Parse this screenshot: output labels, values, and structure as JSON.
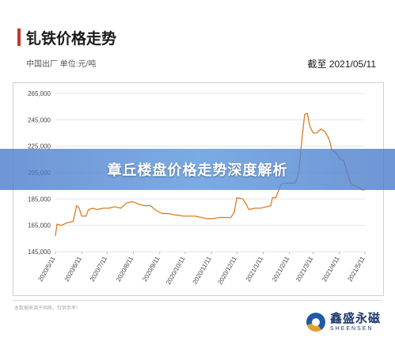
{
  "header": {
    "title": "钆铁价格走势",
    "subtitle": "中国出厂  单位:元/吨",
    "as_of": "截至 2021/05/11"
  },
  "banner": {
    "text": "章丘楼盘价格走势深度解析"
  },
  "footer": {
    "disclaimer": "本数据来源于网络，仅供参考！",
    "logo_cn": "鑫盛永磁",
    "logo_en": "SHEENSEN"
  },
  "colors": {
    "line": "#e07b1f",
    "accent": "#c0392b",
    "banner": "#4a7bc8",
    "logo": "#1e3a6e"
  },
  "chart_data": {
    "type": "line",
    "title": "钆铁价格走势",
    "xlabel": "",
    "ylabel": "",
    "ylim": [
      145000,
      265000
    ],
    "yticks": [
      145000,
      165000,
      185000,
      205000,
      225000,
      245000,
      265000
    ],
    "ytick_labels": [
      "145,000",
      "165,000",
      "185,000",
      "205,000",
      "225,000",
      "245,000",
      "265,000"
    ],
    "xlim": [
      "2020-05-11",
      "2021-05-11"
    ],
    "xticks": [
      "2020-05-11",
      "2020-06-11",
      "2020-07-11",
      "2020-08-11",
      "2020-09-11",
      "2020-10-11",
      "2020-11-11",
      "2020-12-11",
      "2021-01-11",
      "2021-02-11",
      "2021-03-11",
      "2021-04-11",
      "2021-05-11"
    ],
    "xtick_labels": [
      "2020/5/11",
      "2020/6/11",
      "2020/7/11",
      "2020/8/11",
      "2020/9/11",
      "2020/10/11",
      "2020/11/11",
      "2020/12/11",
      "2021/1/11",
      "2021/2/11",
      "2021/3/11",
      "2021/4/11",
      "2021/5/11"
    ],
    "grid": true,
    "series": [
      {
        "x": [
          "2020-05-11",
          "2020-05-13",
          "2020-05-18",
          "2020-05-25",
          "2020-06-01",
          "2020-06-05",
          "2020-06-08",
          "2020-06-11",
          "2020-06-16",
          "2020-06-19",
          "2020-06-24",
          "2020-06-29",
          "2020-07-06",
          "2020-07-13",
          "2020-07-20",
          "2020-07-27",
          "2020-08-03",
          "2020-08-10",
          "2020-08-17",
          "2020-08-24",
          "2020-08-31",
          "2020-09-07",
          "2020-09-14",
          "2020-09-21",
          "2020-09-28",
          "2020-10-09",
          "2020-10-16",
          "2020-10-23",
          "2020-10-30",
          "2020-11-06",
          "2020-11-13",
          "2020-11-20",
          "2020-11-27",
          "2020-12-04",
          "2020-12-08",
          "2020-12-11",
          "2020-12-18",
          "2020-12-22",
          "2020-12-25",
          "2021-01-01",
          "2021-01-08",
          "2021-01-15",
          "2021-01-20",
          "2021-01-22",
          "2021-01-26",
          "2021-02-01",
          "2021-02-05",
          "2021-02-10",
          "2021-02-18",
          "2021-02-22",
          "2021-02-26",
          "2021-03-01",
          "2021-03-04",
          "2021-03-07",
          "2021-03-11",
          "2021-03-15",
          "2021-03-20",
          "2021-03-25",
          "2021-03-30",
          "2021-04-02",
          "2021-04-07",
          "2021-04-12",
          "2021-04-16",
          "2021-04-20",
          "2021-04-24",
          "2021-04-28",
          "2021-05-03",
          "2021-05-07",
          "2021-05-11"
        ],
        "y": [
          157000,
          166000,
          165000,
          167000,
          168000,
          180000,
          178000,
          172000,
          172000,
          177000,
          178000,
          177000,
          178000,
          178000,
          179000,
          178000,
          182000,
          183000,
          181000,
          180000,
          180000,
          176000,
          174000,
          174000,
          173000,
          172000,
          172000,
          172000,
          171000,
          170000,
          170000,
          171000,
          171000,
          171000,
          175000,
          186000,
          185000,
          181000,
          177000,
          178000,
          178000,
          179000,
          180000,
          186000,
          186000,
          196000,
          197000,
          197000,
          197000,
          205000,
          232000,
          249000,
          250000,
          240000,
          235000,
          235000,
          238000,
          236000,
          230000,
          222000,
          220000,
          215000,
          214000,
          205000,
          197000,
          195000,
          194000,
          192000,
          192000
        ]
      }
    ]
  }
}
